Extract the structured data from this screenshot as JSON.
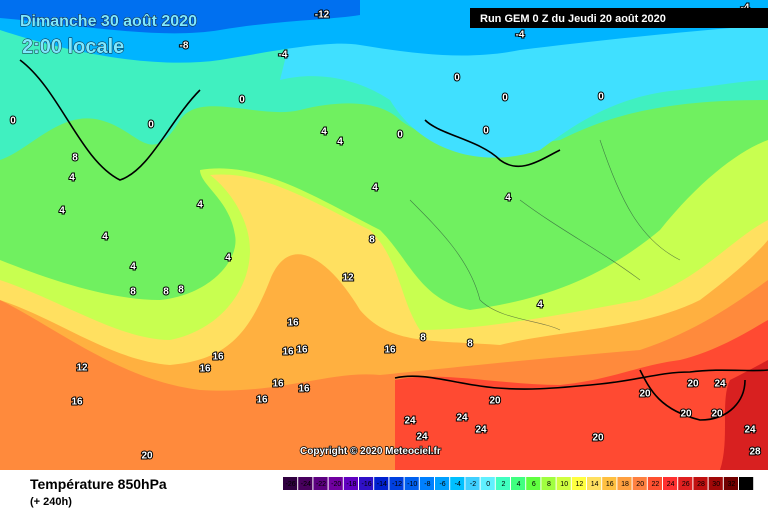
{
  "header": {
    "date": "Dimanche 30 août 2020",
    "time": "2:00 locale",
    "run": "Run GEM 0 Z du Jeudi 20 août 2020"
  },
  "footer": {
    "title": "Température 850hPa",
    "lead": "(+ 240h)",
    "copyright": "Copyright © 2020 Meteociel.fr"
  },
  "legend": {
    "values": [
      -26,
      -24,
      -22,
      -20,
      -18,
      -16,
      -14,
      -12,
      -10,
      -8,
      -6,
      -4,
      -2,
      0,
      2,
      4,
      6,
      8,
      10,
      12,
      14,
      16,
      18,
      20,
      22,
      24,
      26,
      28,
      30,
      32,
      34
    ],
    "colors": [
      "#300040",
      "#48005e",
      "#5c0080",
      "#7000a0",
      "#6000c0",
      "#3010c8",
      "#0020d0",
      "#0040e0",
      "#0060f0",
      "#0080ff",
      "#00a0ff",
      "#00c0ff",
      "#40d0ff",
      "#60f0ff",
      "#40ffc0",
      "#40ff80",
      "#60ff40",
      "#a0ff40",
      "#d0ff40",
      "#ffff40",
      "#ffe060",
      "#ffc040",
      "#ffa040",
      "#ff8040",
      "#ff5030",
      "#ff3030",
      "#e02020",
      "#c01010",
      "#a00808",
      "#700000",
      "#000000"
    ]
  },
  "contour_labels": [
    -12,
    -8,
    -4,
    -4,
    -4,
    -4,
    0,
    0,
    0,
    0,
    0,
    0,
    0,
    0,
    4,
    4,
    4,
    4,
    4,
    4,
    4,
    4,
    4,
    4,
    4,
    8,
    8,
    8,
    8,
    8,
    8,
    8,
    12,
    12,
    16,
    16,
    16,
    16,
    16,
    16,
    16,
    16,
    16,
    16,
    20,
    20,
    20,
    20,
    20,
    20,
    24,
    24,
    24,
    24,
    24,
    24,
    28,
    20
  ]
}
